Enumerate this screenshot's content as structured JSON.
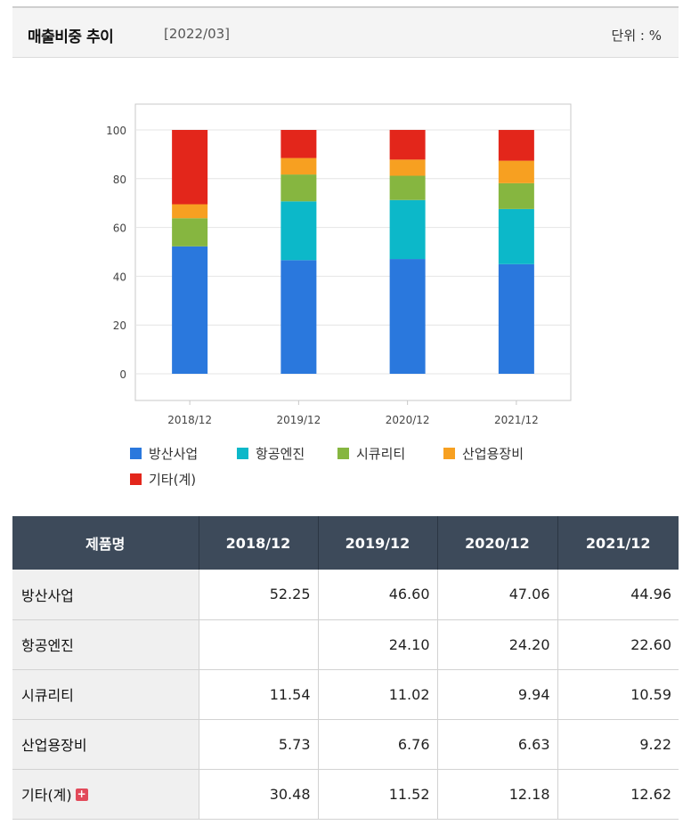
{
  "header": {
    "title": "매출비중 추이",
    "period": "[2022/03]",
    "unit": "단위 : %"
  },
  "chart_data": {
    "type": "bar",
    "stacked": true,
    "categories": [
      "2018/12",
      "2019/12",
      "2020/12",
      "2021/12"
    ],
    "ylim": [
      0,
      100
    ],
    "yticks": [
      0,
      20,
      40,
      60,
      80,
      100
    ],
    "grid": true,
    "legend_position": "bottom",
    "series": [
      {
        "name": "방산사업",
        "color": "#2a78dd",
        "values": [
          52.25,
          46.6,
          47.06,
          44.96
        ]
      },
      {
        "name": "항공엔진",
        "color": "#0cb8c9",
        "values": [
          0,
          24.1,
          24.2,
          22.6
        ]
      },
      {
        "name": "시큐리티",
        "color": "#86b640",
        "values": [
          11.54,
          11.02,
          9.94,
          10.59
        ]
      },
      {
        "name": "산업용장비",
        "color": "#f7a021",
        "values": [
          5.73,
          6.76,
          6.63,
          9.22
        ]
      },
      {
        "name": "기타(계)",
        "color": "#e3261b",
        "values": [
          30.48,
          11.52,
          12.18,
          12.62
        ]
      }
    ]
  },
  "table": {
    "headers": [
      "제품명",
      "2018/12",
      "2019/12",
      "2020/12",
      "2021/12"
    ],
    "rows": [
      {
        "name": "방산사업",
        "values": [
          "52.25",
          "46.60",
          "47.06",
          "44.96"
        ]
      },
      {
        "name": "항공엔진",
        "values": [
          "",
          "24.10",
          "24.20",
          "22.60"
        ]
      },
      {
        "name": "시큐리티",
        "values": [
          "11.54",
          "11.02",
          "9.94",
          "10.59"
        ]
      },
      {
        "name": "산업용장비",
        "values": [
          "5.73",
          "6.76",
          "6.63",
          "9.22"
        ]
      },
      {
        "name": "기타(계)",
        "values": [
          "30.48",
          "11.52",
          "12.18",
          "12.62"
        ],
        "expand_icon": "plus-icon"
      }
    ]
  }
}
